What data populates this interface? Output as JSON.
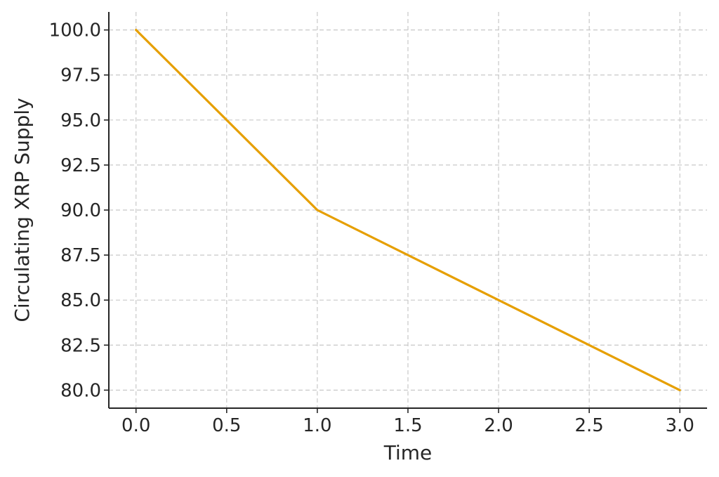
{
  "chart_data": {
    "type": "line",
    "title": "",
    "xlabel": "Time",
    "ylabel": "Circulating XRP Supply",
    "xlim": [
      -0.15,
      3.15
    ],
    "ylim": [
      79.0,
      101.0
    ],
    "x_ticks": [
      0.0,
      0.5,
      1.0,
      1.5,
      2.0,
      2.5,
      3.0
    ],
    "x_tick_labels": [
      "0.0",
      "0.5",
      "1.0",
      "1.5",
      "2.0",
      "2.5",
      "3.0"
    ],
    "y_ticks": [
      80.0,
      82.5,
      85.0,
      87.5,
      90.0,
      92.5,
      95.0,
      97.5,
      100.0
    ],
    "y_tick_labels": [
      "80.0",
      "82.5",
      "85.0",
      "87.5",
      "90.0",
      "92.5",
      "95.0",
      "97.5",
      "100.0"
    ],
    "grid": true,
    "legend": "none",
    "series": [
      {
        "color": "#E69F00",
        "x": [
          0,
          1,
          2,
          3
        ],
        "y": [
          100,
          90,
          85,
          80
        ]
      }
    ]
  }
}
